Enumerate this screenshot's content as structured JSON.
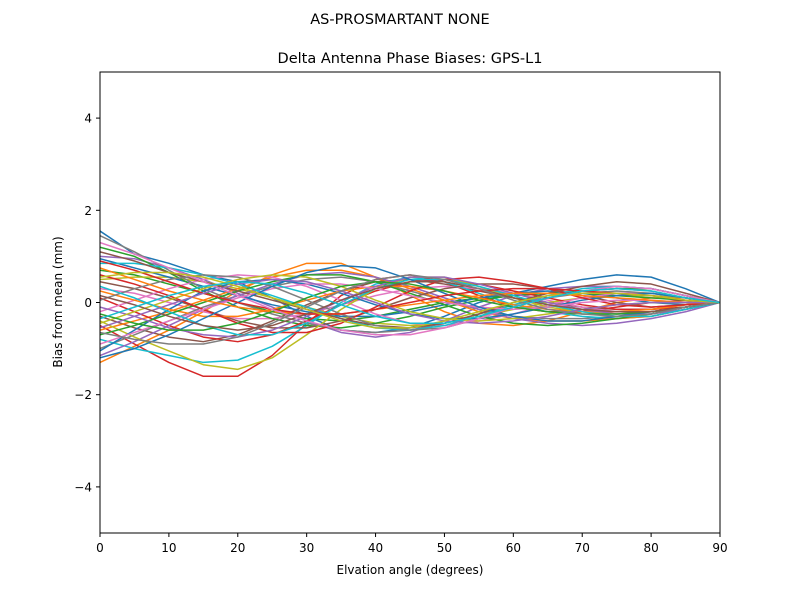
{
  "chart_data": {
    "type": "line",
    "suptitle": "AS-PROSMARTANT  NONE",
    "title": "Delta Antenna Phase Biases: GPS-L1",
    "xlabel": "Elvation angle (degrees)",
    "ylabel": "Bias from mean (mm)",
    "xlim": [
      0,
      90
    ],
    "ylim": [
      -5,
      5
    ],
    "xticks": [
      0,
      10,
      20,
      30,
      40,
      50,
      60,
      70,
      80,
      90
    ],
    "yticks": [
      -4,
      -2,
      0,
      2,
      4
    ],
    "ytick_labels": [
      "−4",
      "−2",
      "0",
      "2",
      "4"
    ],
    "grid": false,
    "legend": "none",
    "x": [
      0,
      5,
      10,
      15,
      20,
      25,
      30,
      35,
      40,
      45,
      50,
      55,
      60,
      65,
      70,
      75,
      80,
      85,
      90
    ],
    "colors": [
      "#1f77b4",
      "#ff7f0e",
      "#2ca02c",
      "#d62728",
      "#9467bd",
      "#8c564b",
      "#e377c2",
      "#7f7f7f",
      "#bcbd22",
      "#17becf"
    ],
    "series": [
      {
        "values": [
          1.55,
          1.05,
          0.85,
          0.6,
          0.45,
          0.1,
          -0.3,
          -0.6,
          -0.65,
          -0.55,
          -0.3,
          0.0,
          0.2,
          0.35,
          0.5,
          0.6,
          0.55,
          0.3,
          0
        ]
      },
      {
        "values": [
          -1.3,
          -0.95,
          -0.6,
          -0.2,
          0.25,
          0.6,
          0.85,
          0.85,
          0.55,
          0.15,
          -0.2,
          -0.45,
          -0.5,
          -0.4,
          -0.2,
          0.0,
          0.1,
          0.1,
          0
        ]
      },
      {
        "values": [
          0.7,
          0.6,
          0.4,
          0.2,
          0.0,
          -0.2,
          -0.35,
          -0.4,
          -0.3,
          -0.15,
          0.0,
          0.1,
          0.15,
          0.2,
          0.25,
          0.3,
          0.3,
          0.15,
          0
        ]
      },
      {
        "values": [
          -0.5,
          -0.9,
          -1.3,
          -1.6,
          -1.6,
          -1.15,
          -0.45,
          0.15,
          0.5,
          0.6,
          0.45,
          0.15,
          -0.1,
          -0.2,
          -0.2,
          -0.1,
          0.0,
          0.05,
          0
        ]
      },
      {
        "values": [
          1.0,
          0.95,
          0.75,
          0.5,
          0.2,
          -0.1,
          -0.4,
          -0.65,
          -0.75,
          -0.65,
          -0.4,
          -0.1,
          0.15,
          0.3,
          0.35,
          0.35,
          0.3,
          0.15,
          0
        ]
      },
      {
        "values": [
          -0.3,
          -0.55,
          -0.75,
          -0.85,
          -0.7,
          -0.4,
          -0.05,
          0.25,
          0.45,
          0.5,
          0.4,
          0.25,
          0.1,
          0.0,
          -0.1,
          -0.15,
          -0.15,
          -0.05,
          0
        ]
      },
      {
        "values": [
          0.3,
          0.2,
          0.0,
          -0.2,
          -0.35,
          -0.35,
          -0.25,
          -0.05,
          0.15,
          0.3,
          0.35,
          0.3,
          0.2,
          0.05,
          -0.1,
          -0.2,
          -0.2,
          -0.1,
          0
        ]
      },
      {
        "values": [
          -1.0,
          -0.7,
          -0.4,
          -0.1,
          0.15,
          0.35,
          0.5,
          0.55,
          0.45,
          0.25,
          0.05,
          -0.15,
          -0.3,
          -0.35,
          -0.35,
          -0.3,
          -0.25,
          -0.1,
          0
        ]
      },
      {
        "values": [
          0.5,
          0.55,
          0.55,
          0.45,
          0.3,
          0.1,
          -0.1,
          -0.3,
          -0.45,
          -0.5,
          -0.45,
          -0.3,
          -0.15,
          0.0,
          0.1,
          0.15,
          0.15,
          0.1,
          0
        ]
      },
      {
        "values": [
          -0.8,
          -1.0,
          -1.15,
          -1.3,
          -1.25,
          -0.95,
          -0.5,
          0.0,
          0.4,
          0.55,
          0.45,
          0.2,
          -0.05,
          -0.2,
          -0.3,
          -0.35,
          -0.3,
          -0.15,
          0
        ]
      },
      {
        "values": [
          0.95,
          0.75,
          0.55,
          0.35,
          0.15,
          -0.05,
          -0.2,
          -0.3,
          -0.3,
          -0.2,
          -0.05,
          0.1,
          0.2,
          0.25,
          0.2,
          0.1,
          0.0,
          -0.05,
          0
        ]
      },
      {
        "values": [
          -0.6,
          -0.4,
          -0.2,
          0.05,
          0.3,
          0.55,
          0.7,
          0.7,
          0.55,
          0.3,
          0.05,
          -0.2,
          -0.35,
          -0.4,
          -0.4,
          -0.35,
          -0.3,
          -0.15,
          0
        ]
      },
      {
        "values": [
          1.2,
          1.0,
          0.65,
          0.25,
          -0.1,
          -0.35,
          -0.5,
          -0.55,
          -0.45,
          -0.3,
          -0.1,
          0.05,
          0.15,
          0.2,
          0.2,
          0.15,
          0.1,
          0.05,
          0
        ]
      },
      {
        "values": [
          0.1,
          -0.2,
          -0.5,
          -0.75,
          -0.85,
          -0.7,
          -0.4,
          -0.05,
          0.25,
          0.45,
          0.5,
          0.4,
          0.25,
          0.1,
          -0.05,
          -0.15,
          -0.15,
          -0.1,
          0
        ]
      },
      {
        "values": [
          -1.15,
          -0.85,
          -0.5,
          -0.15,
          0.15,
          0.4,
          0.6,
          0.65,
          0.55,
          0.35,
          0.1,
          -0.15,
          -0.35,
          -0.45,
          -0.5,
          -0.45,
          -0.35,
          -0.2,
          0
        ]
      },
      {
        "values": [
          0.45,
          0.3,
          0.1,
          -0.15,
          -0.4,
          -0.55,
          -0.55,
          -0.4,
          -0.15,
          0.1,
          0.3,
          0.4,
          0.4,
          0.3,
          0.15,
          0.0,
          -0.1,
          -0.05,
          0
        ]
      },
      {
        "values": [
          -0.2,
          0.05,
          0.3,
          0.5,
          0.6,
          0.55,
          0.35,
          0.05,
          -0.25,
          -0.45,
          -0.5,
          -0.4,
          -0.25,
          -0.05,
          0.1,
          0.2,
          0.2,
          0.1,
          0
        ]
      },
      {
        "values": [
          1.45,
          1.1,
          0.7,
          0.3,
          0.0,
          -0.25,
          -0.45,
          -0.6,
          -0.65,
          -0.6,
          -0.45,
          -0.25,
          -0.05,
          0.1,
          0.2,
          0.25,
          0.2,
          0.1,
          0
        ]
      },
      {
        "values": [
          -0.4,
          -0.75,
          -1.05,
          -1.35,
          -1.45,
          -1.2,
          -0.7,
          -0.15,
          0.3,
          0.55,
          0.55,
          0.35,
          0.1,
          -0.1,
          -0.2,
          -0.25,
          -0.2,
          -0.1,
          0
        ]
      },
      {
        "values": [
          0.85,
          0.85,
          0.75,
          0.6,
          0.4,
          0.15,
          -0.1,
          -0.35,
          -0.55,
          -0.6,
          -0.5,
          -0.3,
          -0.05,
          0.15,
          0.3,
          0.35,
          0.3,
          0.15,
          0
        ]
      },
      {
        "values": [
          -1.05,
          -0.6,
          -0.15,
          0.25,
          0.45,
          0.5,
          0.4,
          0.2,
          -0.05,
          -0.25,
          -0.35,
          -0.35,
          -0.25,
          -0.1,
          0.05,
          0.15,
          0.2,
          0.1,
          0
        ]
      },
      {
        "values": [
          0.25,
          0.05,
          -0.15,
          -0.3,
          -0.3,
          -0.15,
          0.05,
          0.25,
          0.35,
          0.35,
          0.25,
          0.1,
          -0.05,
          -0.15,
          -0.2,
          -0.2,
          -0.15,
          -0.05,
          0
        ]
      },
      {
        "values": [
          -0.7,
          -0.5,
          -0.25,
          0.0,
          0.25,
          0.45,
          0.6,
          0.6,
          0.45,
          0.2,
          -0.05,
          -0.3,
          -0.45,
          -0.5,
          -0.45,
          -0.35,
          -0.25,
          -0.1,
          0
        ]
      },
      {
        "values": [
          0.6,
          0.4,
          0.15,
          -0.15,
          -0.45,
          -0.65,
          -0.65,
          -0.45,
          -0.1,
          0.25,
          0.5,
          0.55,
          0.45,
          0.3,
          0.1,
          -0.05,
          -0.1,
          -0.05,
          0
        ]
      },
      {
        "values": [
          -0.1,
          -0.3,
          -0.55,
          -0.7,
          -0.75,
          -0.6,
          -0.3,
          0.05,
          0.35,
          0.55,
          0.55,
          0.4,
          0.2,
          0.0,
          -0.15,
          -0.25,
          -0.25,
          -0.15,
          0
        ]
      },
      {
        "values": [
          1.1,
          0.9,
          0.65,
          0.45,
          0.25,
          0.05,
          -0.15,
          -0.35,
          -0.5,
          -0.55,
          -0.45,
          -0.25,
          0.0,
          0.2,
          0.35,
          0.45,
          0.4,
          0.2,
          0
        ]
      },
      {
        "values": [
          -0.9,
          -0.65,
          -0.4,
          -0.15,
          0.1,
          0.3,
          0.4,
          0.4,
          0.3,
          0.15,
          0.0,
          -0.1,
          -0.15,
          -0.1,
          0.0,
          0.05,
          0.05,
          0.0,
          0
        ]
      },
      {
        "values": [
          0.05,
          0.3,
          0.5,
          0.6,
          0.55,
          0.35,
          0.05,
          -0.25,
          -0.5,
          -0.6,
          -0.55,
          -0.35,
          -0.1,
          0.1,
          0.25,
          0.3,
          0.25,
          0.1,
          0
        ]
      },
      {
        "values": [
          -0.45,
          -0.2,
          0.05,
          0.3,
          0.5,
          0.6,
          0.55,
          0.35,
          0.05,
          -0.2,
          -0.35,
          -0.4,
          -0.35,
          -0.25,
          -0.15,
          -0.05,
          0.0,
          0.0,
          0
        ]
      },
      {
        "values": [
          0.35,
          0.1,
          -0.2,
          -0.5,
          -0.7,
          -0.7,
          -0.45,
          -0.05,
          0.3,
          0.5,
          0.5,
          0.35,
          0.15,
          -0.05,
          -0.2,
          -0.3,
          -0.3,
          -0.15,
          0
        ]
      },
      {
        "values": [
          -1.2,
          -1.0,
          -0.7,
          -0.35,
          0.0,
          0.35,
          0.65,
          0.8,
          0.75,
          0.5,
          0.2,
          -0.1,
          -0.3,
          -0.4,
          -0.4,
          -0.3,
          -0.2,
          -0.1,
          0
        ]
      },
      {
        "values": [
          0.75,
          0.5,
          0.25,
          0.05,
          -0.1,
          -0.2,
          -0.25,
          -0.25,
          -0.15,
          -0.05,
          0.05,
          0.15,
          0.2,
          0.2,
          0.15,
          0.1,
          0.05,
          0.0,
          0
        ]
      },
      {
        "values": [
          -0.25,
          -0.45,
          -0.6,
          -0.6,
          -0.45,
          -0.2,
          0.1,
          0.35,
          0.45,
          0.4,
          0.25,
          0.05,
          -0.1,
          -0.2,
          -0.25,
          -0.25,
          -0.2,
          -0.1,
          0
        ]
      },
      {
        "values": [
          0.9,
          0.7,
          0.45,
          0.2,
          0.0,
          -0.15,
          -0.25,
          -0.25,
          -0.15,
          0.0,
          0.15,
          0.25,
          0.3,
          0.3,
          0.25,
          0.2,
          0.15,
          0.05,
          0
        ]
      },
      {
        "values": [
          -0.55,
          -0.3,
          -0.05,
          0.2,
          0.4,
          0.5,
          0.45,
          0.25,
          0.0,
          -0.25,
          -0.4,
          -0.45,
          -0.4,
          -0.3,
          -0.15,
          -0.05,
          0.0,
          0.0,
          0
        ]
      },
      {
        "values": [
          0.15,
          -0.05,
          -0.3,
          -0.5,
          -0.6,
          -0.5,
          -0.25,
          0.05,
          0.3,
          0.45,
          0.45,
          0.3,
          0.1,
          -0.05,
          -0.15,
          -0.2,
          -0.2,
          -0.1,
          0
        ]
      },
      {
        "values": [
          1.3,
          1.05,
          0.75,
          0.45,
          0.15,
          -0.15,
          -0.4,
          -0.6,
          -0.7,
          -0.7,
          -0.55,
          -0.35,
          -0.1,
          0.1,
          0.25,
          0.35,
          0.3,
          0.15,
          0
        ]
      },
      {
        "values": [
          -0.65,
          -0.8,
          -0.9,
          -0.9,
          -0.75,
          -0.45,
          -0.1,
          0.25,
          0.5,
          0.6,
          0.5,
          0.3,
          0.05,
          -0.15,
          -0.25,
          -0.3,
          -0.25,
          -0.1,
          0
        ]
      },
      {
        "values": [
          0.55,
          0.65,
          0.65,
          0.55,
          0.35,
          0.1,
          -0.15,
          -0.4,
          -0.55,
          -0.55,
          -0.4,
          -0.2,
          0.0,
          0.15,
          0.2,
          0.2,
          0.15,
          0.05,
          0
        ]
      },
      {
        "values": [
          -0.35,
          -0.1,
          0.15,
          0.35,
          0.45,
          0.4,
          0.2,
          -0.05,
          -0.3,
          -0.45,
          -0.45,
          -0.3,
          -0.1,
          0.1,
          0.25,
          0.3,
          0.25,
          0.1,
          0
        ]
      }
    ]
  }
}
